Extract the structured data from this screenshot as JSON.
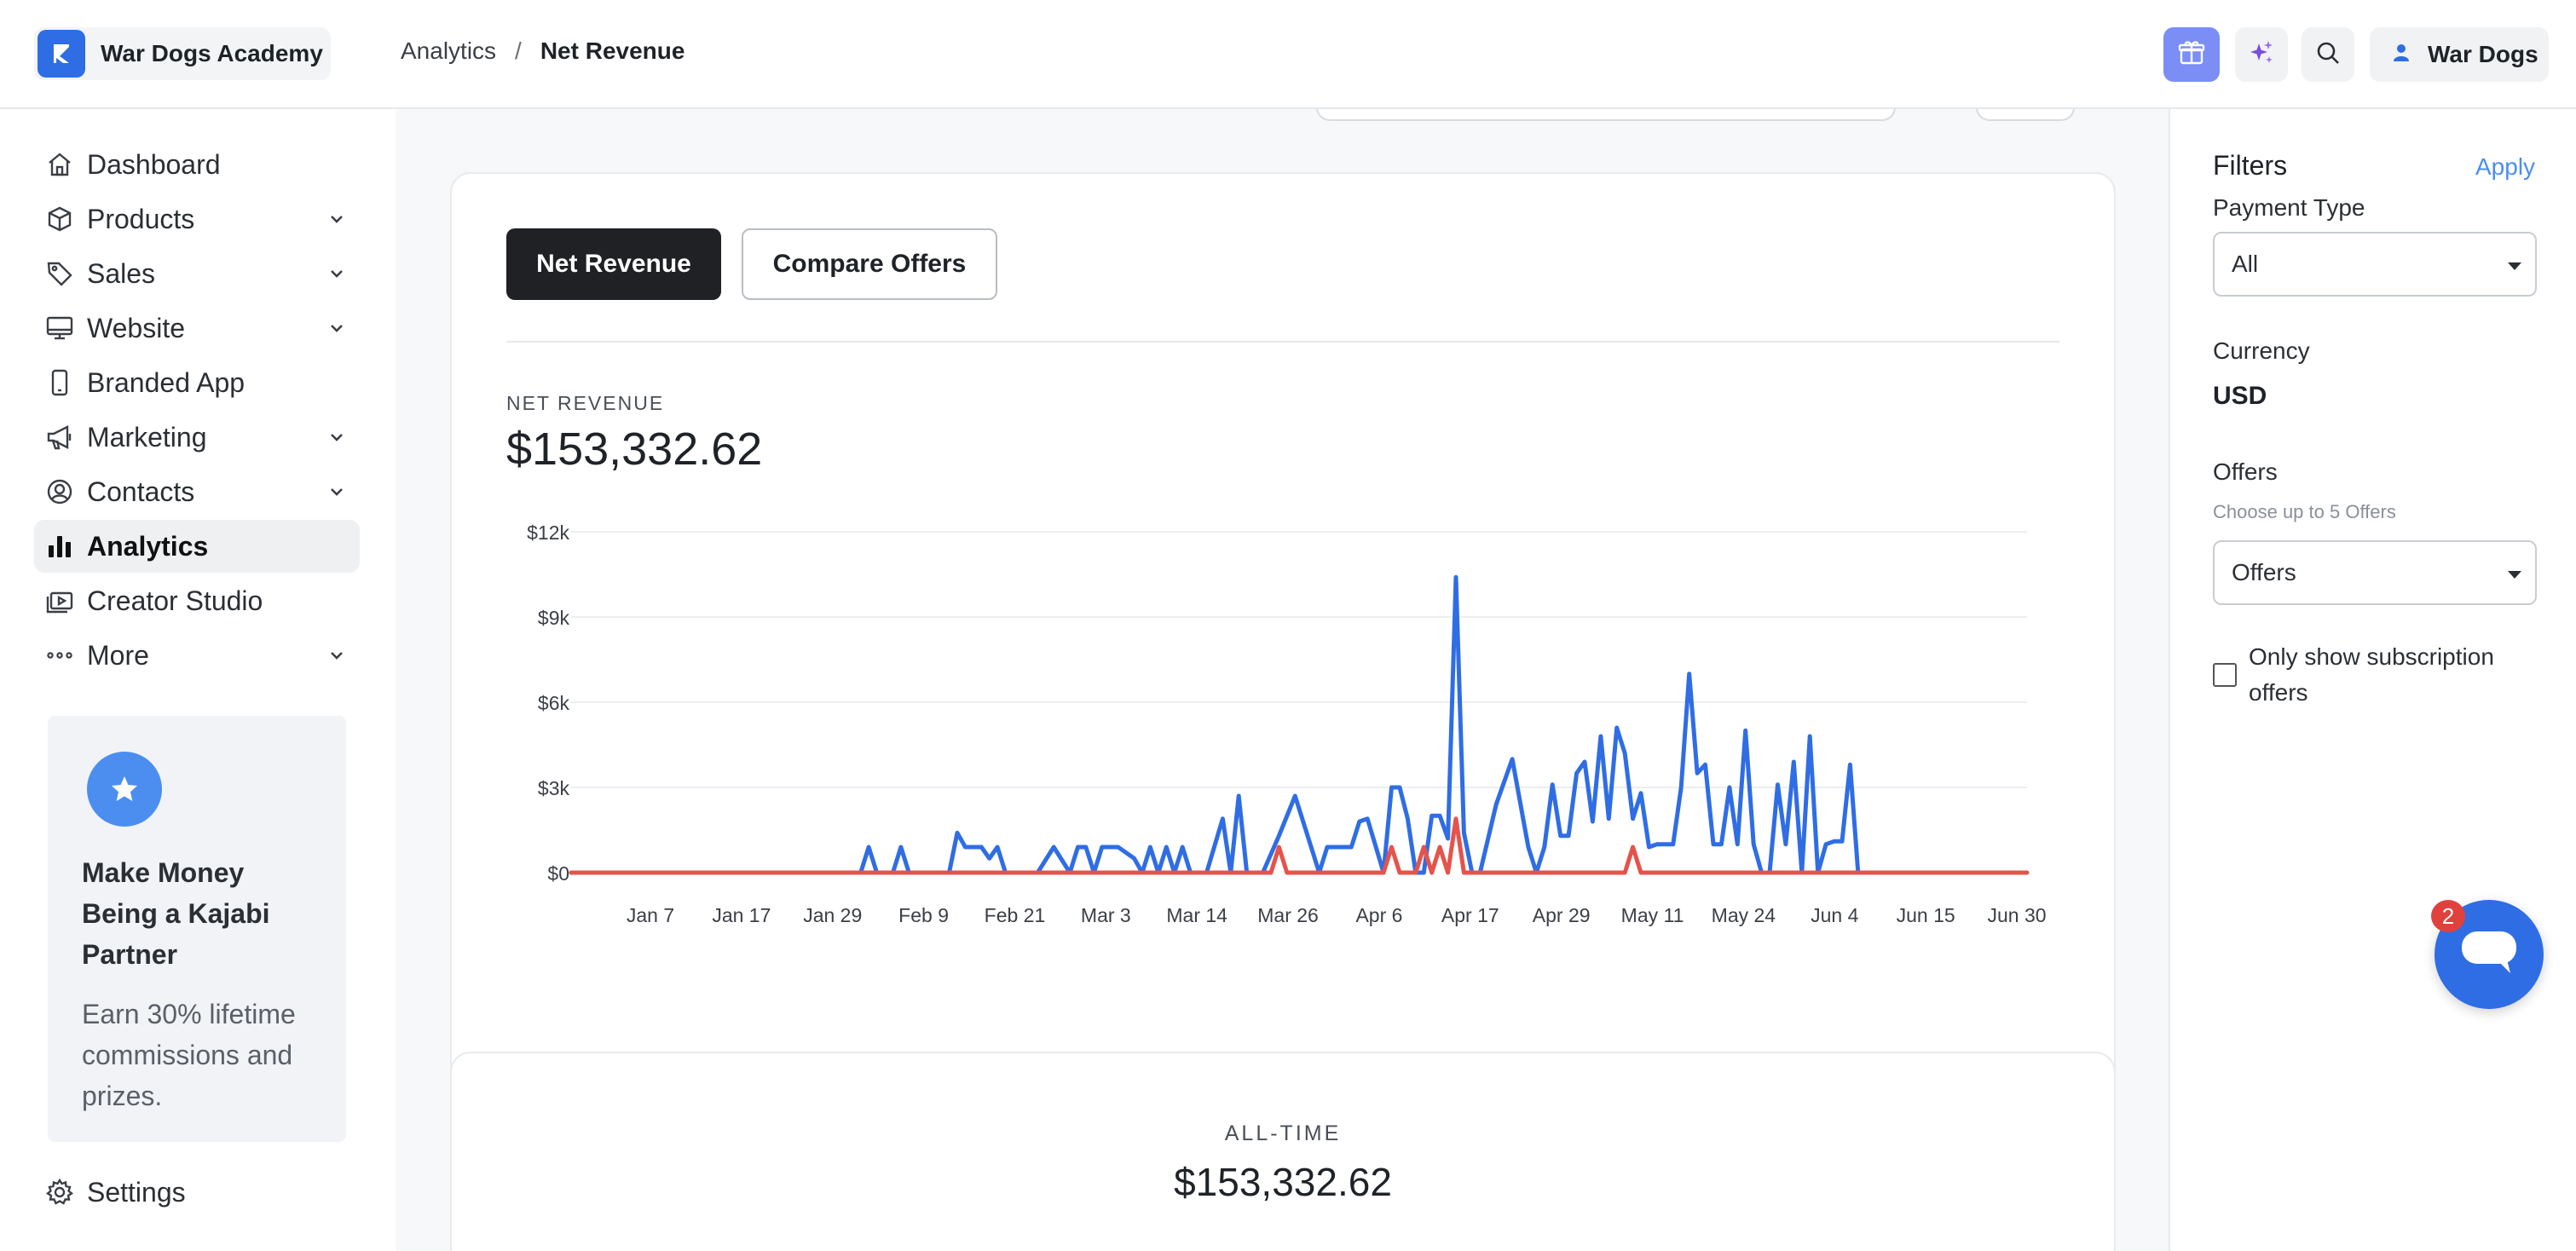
{
  "app": {
    "brand_name": "War Dogs Academy",
    "user_name": "War Dogs",
    "brand_color": "#2f6de5"
  },
  "breadcrumb": {
    "parent": "Analytics",
    "separator": "/",
    "current": "Net Revenue"
  },
  "topbar": {
    "icons": [
      "gift-icon",
      "sparkle-icon",
      "search-icon",
      "user-icon"
    ]
  },
  "sidebar": {
    "items": [
      {
        "label": "Dashboard",
        "icon": "home-icon",
        "has_children": false,
        "active": false
      },
      {
        "label": "Products",
        "icon": "box-icon",
        "has_children": true,
        "active": false
      },
      {
        "label": "Sales",
        "icon": "tag-icon",
        "has_children": true,
        "active": false
      },
      {
        "label": "Website",
        "icon": "monitor-icon",
        "has_children": true,
        "active": false
      },
      {
        "label": "Branded App",
        "icon": "phone-icon",
        "has_children": false,
        "active": false
      },
      {
        "label": "Marketing",
        "icon": "megaphone-icon",
        "has_children": true,
        "active": false
      },
      {
        "label": "Contacts",
        "icon": "contact-icon",
        "has_children": true,
        "active": false
      },
      {
        "label": "Analytics",
        "icon": "bar-chart-icon",
        "has_children": false,
        "active": true
      },
      {
        "label": "Creator Studio",
        "icon": "video-icon",
        "has_children": false,
        "active": false
      },
      {
        "label": "More",
        "icon": "ellipsis-icon",
        "has_children": true,
        "active": false
      }
    ],
    "promo": {
      "title": "Make Money Being a Kajabi Partner",
      "text": "Earn 30% lifetime commissions and prizes."
    },
    "settings_label": "Settings"
  },
  "main": {
    "tabs": [
      "Net Revenue",
      "Compare Offers"
    ],
    "active_tab": "Net Revenue",
    "metric_label": "NET REVENUE",
    "metric_value": "$153,332.62",
    "alltime_label": "ALL-TIME",
    "alltime_value": "$153,332.62"
  },
  "chart_data": {
    "type": "line",
    "title": "",
    "xlabel": "",
    "ylabel": "",
    "ylim": [
      0,
      12000
    ],
    "y_ticks": [
      "$0",
      "$3k",
      "$6k",
      "$9k",
      "$12k"
    ],
    "x_ticks": [
      "Jan 7",
      "Jan 17",
      "Jan 29",
      "Feb 9",
      "Feb 21",
      "Mar 3",
      "Mar 14",
      "Mar 26",
      "Apr 6",
      "Apr 17",
      "Apr 29",
      "May 11",
      "May 24",
      "Jun 4",
      "Jun 15",
      "Jun 30"
    ],
    "grid": true,
    "series": [
      {
        "color": "#2f6de5",
        "points": [
          [
            "Jan 1",
            0
          ],
          [
            "Feb 6",
            0
          ],
          [
            "Feb 7",
            900
          ],
          [
            "Feb 8",
            0
          ],
          [
            "Feb 10",
            0
          ],
          [
            "Feb 11",
            900
          ],
          [
            "Feb 12",
            0
          ],
          [
            "Feb 17",
            0
          ],
          [
            "Feb 18",
            1400
          ],
          [
            "Feb 19",
            900
          ],
          [
            "Feb 21",
            900
          ],
          [
            "Feb 22",
            500
          ],
          [
            "Feb 23",
            900
          ],
          [
            "Feb 24",
            0
          ],
          [
            "Feb 28",
            0
          ],
          [
            "Mar 1",
            900
          ],
          [
            "Mar 3",
            0
          ],
          [
            "Mar 4",
            900
          ],
          [
            "Mar 5",
            900
          ],
          [
            "Mar 6",
            0
          ],
          [
            "Mar 7",
            900
          ],
          [
            "Mar 9",
            900
          ],
          [
            "Mar 11",
            500
          ],
          [
            "Mar 12",
            0
          ],
          [
            "Mar 13",
            900
          ],
          [
            "Mar 14",
            0
          ],
          [
            "Mar 15",
            900
          ],
          [
            "Mar 16",
            0
          ],
          [
            "Mar 17",
            900
          ],
          [
            "Mar 18",
            0
          ],
          [
            "Mar 20",
            0
          ],
          [
            "Mar 22",
            1900
          ],
          [
            "Mar 23",
            0
          ],
          [
            "Mar 24",
            2700
          ],
          [
            "Mar 25",
            0
          ],
          [
            "Mar 27",
            0
          ],
          [
            "Mar 29",
            1300
          ],
          [
            "Mar 31",
            2700
          ],
          [
            "Apr 3",
            0
          ],
          [
            "Apr 4",
            900
          ],
          [
            "Apr 7",
            900
          ],
          [
            "Apr 8",
            1800
          ],
          [
            "Apr 9",
            1900
          ],
          [
            "Apr 11",
            0
          ],
          [
            "Apr 12",
            3000
          ],
          [
            "Apr 13",
            3000
          ],
          [
            "Apr 14",
            1900
          ],
          [
            "Apr 15",
            0
          ],
          [
            "Apr 16",
            0
          ],
          [
            "Apr 17",
            2000
          ],
          [
            "Apr 18",
            2000
          ],
          [
            "Apr 19",
            1200
          ],
          [
            "Apr 20",
            10400
          ],
          [
            "Apr 21",
            1400
          ],
          [
            "Apr 22",
            0
          ],
          [
            "Apr 23",
            0
          ],
          [
            "Apr 25",
            2400
          ],
          [
            "Apr 27",
            4000
          ],
          [
            "Apr 29",
            900
          ],
          [
            "Apr 30",
            0
          ],
          [
            "May 1",
            900
          ],
          [
            "May 2",
            3100
          ],
          [
            "May 3",
            1300
          ],
          [
            "May 4",
            1300
          ],
          [
            "May 5",
            3500
          ],
          [
            "May 6",
            3900
          ],
          [
            "May 7",
            1800
          ],
          [
            "May 8",
            4800
          ],
          [
            "May 9",
            1900
          ],
          [
            "May 10",
            5100
          ],
          [
            "May 11",
            4200
          ],
          [
            "May 12",
            1900
          ],
          [
            "May 13",
            2800
          ],
          [
            "May 14",
            900
          ],
          [
            "May 15",
            1000
          ],
          [
            "May 17",
            1000
          ],
          [
            "May 18",
            3000
          ],
          [
            "May 19",
            7000
          ],
          [
            "May 20",
            3500
          ],
          [
            "May 21",
            3800
          ],
          [
            "May 22",
            1000
          ],
          [
            "May 23",
            1000
          ],
          [
            "May 24",
            3000
          ],
          [
            "May 25",
            1000
          ],
          [
            "May 26",
            5000
          ],
          [
            "May 27",
            1000
          ],
          [
            "May 28",
            0
          ],
          [
            "May 29",
            0
          ],
          [
            "May 30",
            3100
          ],
          [
            "May 31",
            1000
          ],
          [
            "Jun 1",
            3900
          ],
          [
            "Jun 2",
            0
          ],
          [
            "Jun 3",
            4800
          ],
          [
            "Jun 4",
            0
          ],
          [
            "Jun 5",
            1000
          ],
          [
            "Jun 6",
            1100
          ],
          [
            "Jun 7",
            1100
          ],
          [
            "Jun 8",
            3800
          ],
          [
            "Jun 9",
            0
          ]
        ]
      },
      {
        "color": "#e5534b",
        "points": [
          [
            "Jan 1",
            0
          ],
          [
            "Mar 28",
            0
          ],
          [
            "Mar 29",
            900
          ],
          [
            "Mar 30",
            0
          ],
          [
            "Apr 11",
            0
          ],
          [
            "Apr 12",
            900
          ],
          [
            "Apr 13",
            0
          ],
          [
            "Apr 15",
            0
          ],
          [
            "Apr 16",
            900
          ],
          [
            "Apr 17",
            0
          ],
          [
            "Apr 18",
            900
          ],
          [
            "Apr 19",
            0
          ],
          [
            "Apr 20",
            1900
          ],
          [
            "Apr 21",
            0
          ],
          [
            "May 11",
            0
          ],
          [
            "May 12",
            900
          ],
          [
            "May 13",
            0
          ],
          [
            "Jun 30",
            0
          ]
        ]
      }
    ]
  },
  "filters": {
    "title": "Filters",
    "apply_label": "Apply",
    "payment_type_label": "Payment Type",
    "payment_type_value": "All",
    "currency_label": "Currency",
    "currency_value": "USD",
    "offers_label": "Offers",
    "offers_help": "Choose up to 5 Offers",
    "offers_value": "Offers",
    "subscription_only_label": "Only show subscription offers",
    "subscription_only_checked": false
  },
  "chat": {
    "badge_count": "2",
    "color": "#2f6de5"
  }
}
